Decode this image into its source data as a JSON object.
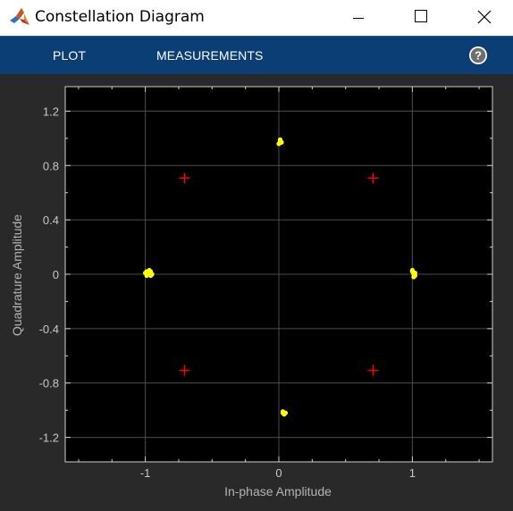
{
  "window": {
    "title": "Constellation Diagram"
  },
  "toolstrip": {
    "tabs": [
      {
        "label": "PLOT"
      },
      {
        "label": "MEASUREMENTS"
      }
    ],
    "help_icon": "help-icon"
  },
  "colors": {
    "toolstrip_bg": "#0a3e74",
    "plot_bg": "#000000",
    "figure_bg": "#292929",
    "grid": "#4d4d4d",
    "received": "#ffff00",
    "reference": "#ff0000"
  },
  "chart_data": {
    "type": "scatter",
    "title": "",
    "xlabel": "In-phase Amplitude",
    "ylabel": "Quadrature Amplitude",
    "xlim": [
      -1.6,
      1.6
    ],
    "ylim": [
      -1.38,
      1.38
    ],
    "xticks": [
      -1,
      0,
      1
    ],
    "xtick_labels": [
      "-1",
      "0",
      "1"
    ],
    "yticks": [
      1.2,
      0.8,
      0.4,
      0,
      -0.4,
      -0.8,
      -1.2
    ],
    "ytick_labels": [
      "1.2",
      "0.8",
      "0.4",
      "0",
      "-0.4",
      "-0.8",
      "-1.2"
    ],
    "grid": true,
    "series": [
      {
        "marker": "dot",
        "color": "#ffff00",
        "points": [
          [
            0.01,
            0.98
          ],
          [
            0.02,
            0.97
          ],
          [
            0.0,
            0.96
          ],
          [
            0.01,
            0.99
          ],
          [
            0.015,
            0.975
          ],
          [
            -0.99,
            0.02
          ],
          [
            -0.98,
            0.0
          ],
          [
            -0.97,
            0.01
          ],
          [
            -0.96,
            -0.01
          ],
          [
            -1.0,
            0.01
          ],
          [
            -0.98,
            0.02
          ],
          [
            -0.99,
            -0.01
          ],
          [
            -0.97,
            0.03
          ],
          [
            -0.95,
            0.0
          ],
          [
            -0.96,
            0.02
          ],
          [
            1.0,
            0.02
          ],
          [
            1.01,
            0.0
          ],
          [
            1.02,
            -0.01
          ],
          [
            1.0,
            0.03
          ],
          [
            1.01,
            -0.02
          ],
          [
            1.02,
            0.01
          ],
          [
            0.03,
            -1.02
          ],
          [
            0.04,
            -1.03
          ],
          [
            0.03,
            -1.01
          ],
          [
            0.05,
            -1.02
          ],
          [
            0.04,
            -1.02
          ]
        ]
      },
      {
        "marker": "plus",
        "color": "#ff0000",
        "points": [
          [
            -0.7071,
            0.7071
          ],
          [
            0.7071,
            0.7071
          ],
          [
            -0.7071,
            -0.7071
          ],
          [
            0.7071,
            -0.7071
          ]
        ]
      }
    ]
  }
}
